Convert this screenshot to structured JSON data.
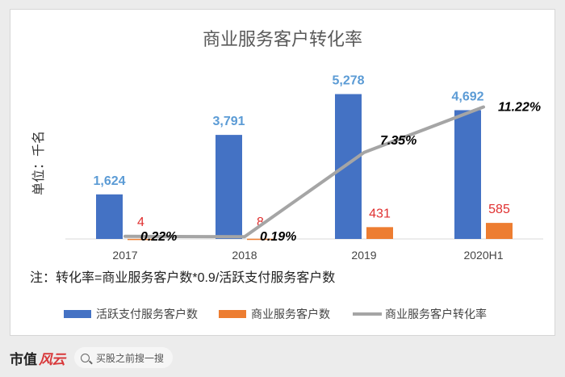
{
  "chart_data": {
    "type": "bar",
    "title": "商业服务客户转化率",
    "ylabel": "单位：千名",
    "categories": [
      "2017",
      "2018",
      "2019",
      "2020H1"
    ],
    "series": [
      {
        "name": "活跃支付服务客户数",
        "kind": "bar",
        "color": "#4472c4",
        "label_color": "#5b9bd5",
        "values": [
          1624,
          3791,
          5278,
          4692
        ],
        "labels": [
          "1,624",
          "3,791",
          "5,278",
          "4,692"
        ]
      },
      {
        "name": "商业服务客户数",
        "kind": "bar",
        "color": "#ed7d31",
        "label_color": "#e03030",
        "values": [
          4,
          8,
          431,
          585
        ],
        "labels": [
          "4",
          "8",
          "431",
          "585"
        ]
      },
      {
        "name": "商业服务客户转化率",
        "kind": "line",
        "color": "#a5a5a5",
        "label_color": "#000000",
        "values": [
          0.22,
          0.19,
          7.35,
          11.22
        ],
        "labels": [
          "0.22%",
          "0.19%",
          "7.35%",
          "11.22%"
        ]
      }
    ],
    "ylim": [
      0,
      6000
    ],
    "ylim_rate": [
      0,
      14
    ],
    "grid": false,
    "legend_position": "bottom",
    "note": "注：转化率=商业服务客户数*0.9/活跃支付服务客户数"
  },
  "footer": {
    "brand_text": "市值",
    "brand_mark": "风云",
    "search_text": "买股之前搜一搜",
    "search_icon": "search-icon"
  }
}
